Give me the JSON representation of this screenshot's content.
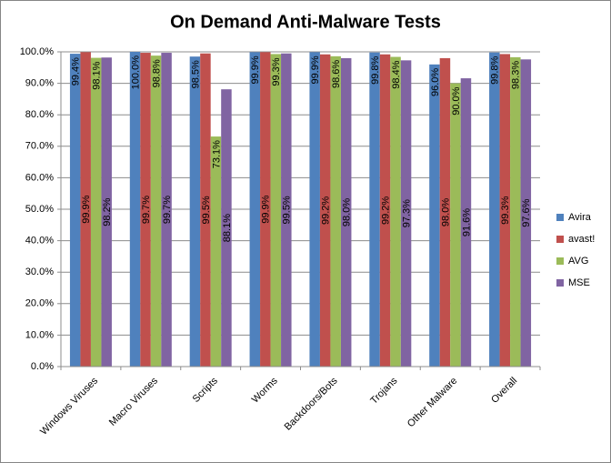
{
  "chart_data": {
    "type": "bar",
    "title": "On Demand Anti-Malware Tests",
    "categories": [
      "Windows Viruses",
      "Macro Viruses",
      "Scripts",
      "Worms",
      "Backdoors/Bots",
      "Trojans",
      "Other Malware",
      "Overall"
    ],
    "series": [
      {
        "name": "Avira",
        "color": "#4f81bd",
        "values": [
          99.4,
          100.0,
          98.5,
          99.9,
          99.9,
          99.8,
          96.0,
          99.8
        ],
        "value_labels": [
          "99.4%",
          "100.0%",
          "98.5%",
          "99.9%",
          "99.9%",
          "99.8%",
          "96.0%",
          "99.8%"
        ]
      },
      {
        "name": "avast!",
        "color": "#c0504d",
        "values": [
          99.9,
          99.7,
          99.5,
          99.9,
          99.2,
          99.2,
          98.0,
          99.3
        ],
        "value_labels": [
          "99.9%",
          "99.7%",
          "99.5%",
          "99.9%",
          "99.2%",
          "99.2%",
          "98.0%",
          "99.3%"
        ]
      },
      {
        "name": "AVG",
        "color": "#9bbb59",
        "values": [
          98.1,
          98.8,
          73.1,
          99.3,
          98.6,
          98.4,
          90.0,
          98.3
        ],
        "value_labels": [
          "98.1%",
          "98.8%",
          "73.1%",
          "99.3%",
          "98.6%",
          "98.4%",
          "90.0%",
          "98.3%"
        ]
      },
      {
        "name": "MSE",
        "color": "#8064a2",
        "values": [
          98.2,
          99.7,
          88.1,
          99.5,
          98.0,
          97.3,
          91.6,
          97.6
        ],
        "value_labels": [
          "98.2%",
          "99.7%",
          "88.1%",
          "99.5%",
          "98.0%",
          "97.3%",
          "91.6%",
          "97.6%"
        ]
      }
    ],
    "ylim": [
      0,
      100
    ],
    "yticks": [
      {
        "value": 0,
        "label": "0.0%"
      },
      {
        "value": 10,
        "label": "10.0%"
      },
      {
        "value": 20,
        "label": "20.0%"
      },
      {
        "value": 30,
        "label": "30.0%"
      },
      {
        "value": 40,
        "label": "40.0%"
      },
      {
        "value": 50,
        "label": "50.0%"
      },
      {
        "value": 60,
        "label": "60.0%"
      },
      {
        "value": 70,
        "label": "70.0%"
      },
      {
        "value": 80,
        "label": "80.0%"
      },
      {
        "value": 90,
        "label": "90.0%"
      },
      {
        "value": 100,
        "label": "100.0%"
      }
    ],
    "grid": true,
    "legend": "right"
  }
}
